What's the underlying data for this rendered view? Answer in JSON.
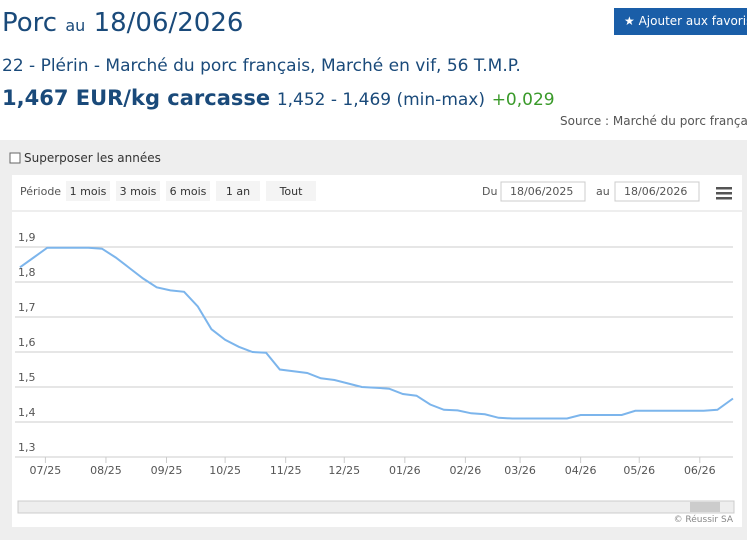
{
  "header": {
    "title": "Porc",
    "date_prefix": "au",
    "date": "18/06/2026",
    "subtitle": "22 - Plérin - Marché du porc français, Marché en vif, 56 T.M.P.",
    "price": "1,467 EUR/kg carcasse",
    "range": "1,452 - 1,469 (min-max)",
    "change": "+0,029",
    "source": "Source : Marché du porc français",
    "favorite_button": "Ajouter aux favoris"
  },
  "controls": {
    "overlay_checkbox": "Superposer les années",
    "period_label": "Période",
    "period_options": [
      "1 mois",
      "3 mois",
      "6 mois",
      "1 an",
      "Tout"
    ],
    "from_label": "Du",
    "to_label": "au",
    "copyright": "© Réussir SA"
  },
  "chart_data": {
    "type": "line",
    "color": "#7cb5ec",
    "grid": true,
    "x": [
      "18/06/2025",
      "25/06/2025",
      "02/07/2025",
      "09/07/2025",
      "16/07/2025",
      "23/07/2025",
      "30/07/2025",
      "06/08/2025",
      "13/08/2025",
      "20/08/2025",
      "27/08/2025",
      "03/09/2025",
      "10/09/2025",
      "17/09/2025",
      "24/09/2025",
      "01/10/2025",
      "08/10/2025",
      "15/10/2025",
      "22/10/2025",
      "29/10/2025",
      "05/11/2025",
      "12/11/2025",
      "19/11/2025",
      "26/11/2025",
      "03/12/2025",
      "10/12/2025",
      "17/12/2025",
      "24/12/2025",
      "31/12/2025",
      "07/01/2026",
      "14/01/2026",
      "21/01/2026",
      "28/01/2026",
      "04/02/2026",
      "11/02/2026",
      "18/02/2026",
      "25/02/2026",
      "04/03/2026",
      "11/03/2026",
      "18/03/2026",
      "25/03/2026",
      "01/04/2026",
      "08/04/2026",
      "15/04/2026",
      "22/04/2026",
      "29/04/2026",
      "06/05/2026",
      "13/05/2026",
      "20/05/2026",
      "27/05/2026",
      "03/06/2026",
      "10/06/2026",
      "18/06/2026"
    ],
    "values": [
      1.842,
      1.87,
      1.898,
      1.898,
      1.898,
      1.898,
      1.895,
      1.87,
      1.84,
      1.81,
      1.785,
      1.776,
      1.772,
      1.73,
      1.665,
      1.635,
      1.615,
      1.6,
      1.598,
      1.55,
      1.545,
      1.54,
      1.525,
      1.52,
      1.51,
      1.5,
      1.498,
      1.495,
      1.48,
      1.475,
      1.45,
      1.435,
      1.433,
      1.425,
      1.422,
      1.412,
      1.41,
      1.41,
      1.41,
      1.41,
      1.41,
      1.42,
      1.42,
      1.42,
      1.42,
      1.432,
      1.432,
      1.432,
      1.432,
      1.432,
      1.432,
      1.435,
      1.467
    ],
    "xlim": [
      "18/06/2025",
      "18/06/2026"
    ],
    "xticks": [
      {
        "value": "01/07/2025",
        "label": "07/25"
      },
      {
        "value": "01/08/2025",
        "label": "08/25"
      },
      {
        "value": "01/09/2025",
        "label": "09/25"
      },
      {
        "value": "01/10/2025",
        "label": "10/25"
      },
      {
        "value": "01/11/2025",
        "label": "11/25"
      },
      {
        "value": "01/12/2025",
        "label": "12/25"
      },
      {
        "value": "01/01/2026",
        "label": "01/26"
      },
      {
        "value": "01/02/2026",
        "label": "02/26"
      },
      {
        "value": "01/03/2026",
        "label": "03/26"
      },
      {
        "value": "01/04/2026",
        "label": "04/26"
      },
      {
        "value": "01/05/2026",
        "label": "05/26"
      },
      {
        "value": "01/06/2026",
        "label": "06/26"
      }
    ],
    "ylim": [
      1.3,
      1.9
    ],
    "yticks": [
      {
        "value": 1.3,
        "label": "1,3"
      },
      {
        "value": 1.4,
        "label": "1,4"
      },
      {
        "value": 1.5,
        "label": "1,5"
      },
      {
        "value": 1.6,
        "label": "1,6"
      },
      {
        "value": 1.7,
        "label": "1,7"
      },
      {
        "value": 1.8,
        "label": "1,8"
      },
      {
        "value": 1.9,
        "label": "1,9"
      }
    ]
  }
}
